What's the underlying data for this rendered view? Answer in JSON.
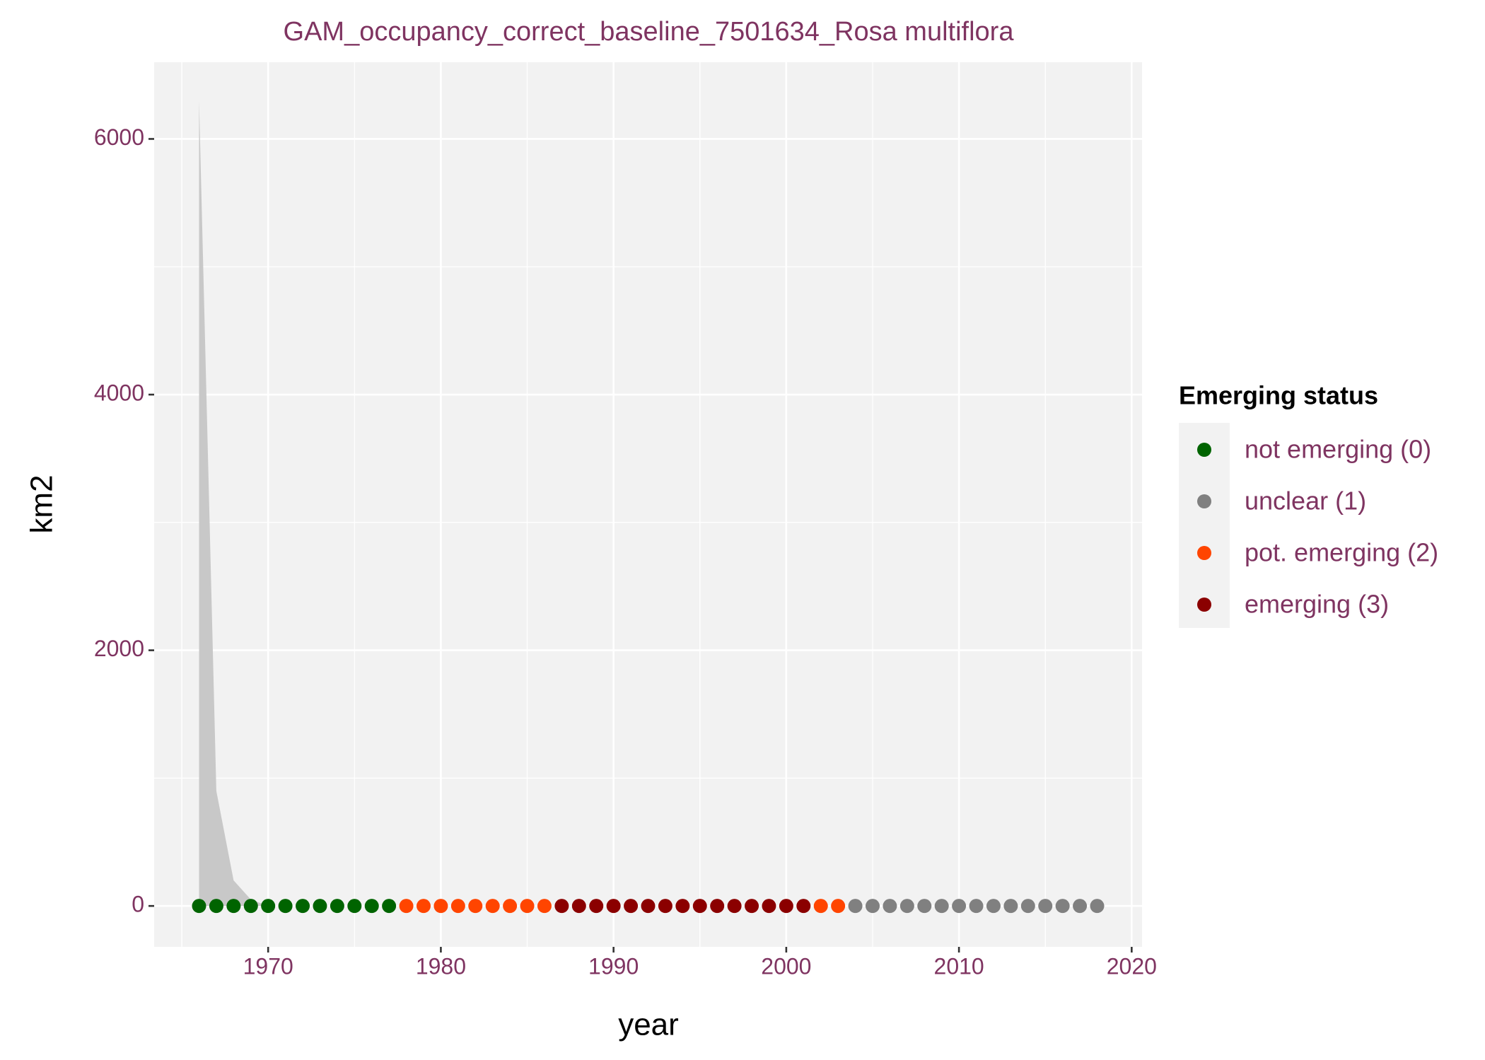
{
  "chart_data": {
    "type": "scatter",
    "title": "GAM_occupancy_correct_baseline_7501634_Rosa multiflora",
    "x_label": "year",
    "y_label": "km2",
    "legend_title": "Emerging status",
    "x": [
      1966,
      1967,
      1968,
      1969,
      1970,
      1971,
      1972,
      1973,
      1974,
      1975,
      1976,
      1977,
      1978,
      1979,
      1980,
      1981,
      1982,
      1983,
      1984,
      1985,
      1986,
      1987,
      1988,
      1989,
      1990,
      1991,
      1992,
      1993,
      1994,
      1995,
      1996,
      1997,
      1998,
      1999,
      2000,
      2001,
      2002,
      2003,
      2004,
      2005,
      2006,
      2007,
      2008,
      2009,
      2010,
      2011,
      2012,
      2013,
      2014,
      2015,
      2016,
      2017,
      2018
    ],
    "ribbon": {
      "color": "#c8c8c8",
      "upper": [
        6300,
        900,
        200,
        50,
        0,
        0,
        0,
        0,
        0,
        0,
        0,
        0,
        0,
        0,
        0,
        0,
        0,
        0,
        0,
        0,
        0,
        0,
        0,
        0,
        0,
        0,
        0,
        0,
        0,
        0,
        0,
        0,
        0,
        0,
        0,
        0,
        0,
        0,
        0,
        0,
        0,
        0,
        0,
        0,
        0,
        0,
        0,
        0,
        0,
        0,
        0,
        0,
        0
      ],
      "lower": [
        0,
        0,
        0,
        0,
        0,
        0,
        0,
        0,
        0,
        0,
        0,
        0,
        0,
        0,
        0,
        0,
        0,
        0,
        0,
        0,
        0,
        0,
        0,
        0,
        0,
        0,
        0,
        0,
        0,
        0,
        0,
        0,
        0,
        0,
        0,
        0,
        0,
        0,
        0,
        0,
        0,
        0,
        0,
        0,
        0,
        0,
        0,
        0,
        0,
        0,
        0,
        0,
        0
      ]
    },
    "series": [
      {
        "name": "not emerging (0)",
        "color": "#006400",
        "values": [
          0,
          0,
          0,
          0,
          0,
          0,
          0,
          0,
          0,
          0,
          0,
          0,
          null,
          null,
          null,
          null,
          null,
          null,
          null,
          null,
          null,
          null,
          null,
          null,
          null,
          null,
          null,
          null,
          null,
          null,
          null,
          null,
          null,
          null,
          null,
          null,
          null,
          null,
          null,
          null,
          null,
          null,
          null,
          null,
          null,
          null,
          null,
          null,
          null,
          null,
          null,
          null,
          null
        ]
      },
      {
        "name": "unclear (1)",
        "color": "#808080",
        "values": [
          null,
          null,
          null,
          null,
          null,
          null,
          null,
          null,
          null,
          null,
          null,
          null,
          null,
          null,
          null,
          null,
          null,
          null,
          null,
          null,
          null,
          null,
          null,
          null,
          null,
          null,
          null,
          null,
          null,
          null,
          null,
          null,
          null,
          null,
          null,
          null,
          null,
          null,
          0,
          0,
          0,
          0,
          0,
          0,
          0,
          0,
          0,
          0,
          0,
          0,
          0,
          0,
          0
        ]
      },
      {
        "name": "pot. emerging (2)",
        "color": "#ff4500",
        "values": [
          null,
          null,
          null,
          null,
          null,
          null,
          null,
          null,
          null,
          null,
          null,
          null,
          0,
          0,
          0,
          0,
          0,
          0,
          0,
          0,
          0,
          null,
          null,
          null,
          null,
          null,
          null,
          null,
          null,
          null,
          null,
          null,
          null,
          null,
          null,
          null,
          0,
          0,
          null,
          null,
          null,
          null,
          null,
          null,
          null,
          null,
          null,
          null,
          null,
          null,
          null,
          null,
          null
        ]
      },
      {
        "name": "emerging (3)",
        "color": "#8b0000",
        "values": [
          null,
          null,
          null,
          null,
          null,
          null,
          null,
          null,
          null,
          null,
          null,
          null,
          null,
          null,
          null,
          null,
          null,
          null,
          null,
          null,
          null,
          0,
          0,
          0,
          0,
          0,
          0,
          0,
          0,
          0,
          0,
          0,
          0,
          0,
          0,
          0,
          null,
          null,
          null,
          null,
          null,
          null,
          null,
          null,
          null,
          null,
          null,
          null,
          null,
          null,
          null,
          null,
          null
        ]
      }
    ],
    "xlim": [
      1963.4,
      2020.6
    ],
    "xticks": [
      1970,
      1980,
      1990,
      2000,
      2010,
      2020
    ],
    "ylim": [
      -320,
      6600
    ],
    "yticks": [
      0,
      2000,
      4000,
      6000
    ],
    "grid": true,
    "legend_position": "right"
  }
}
